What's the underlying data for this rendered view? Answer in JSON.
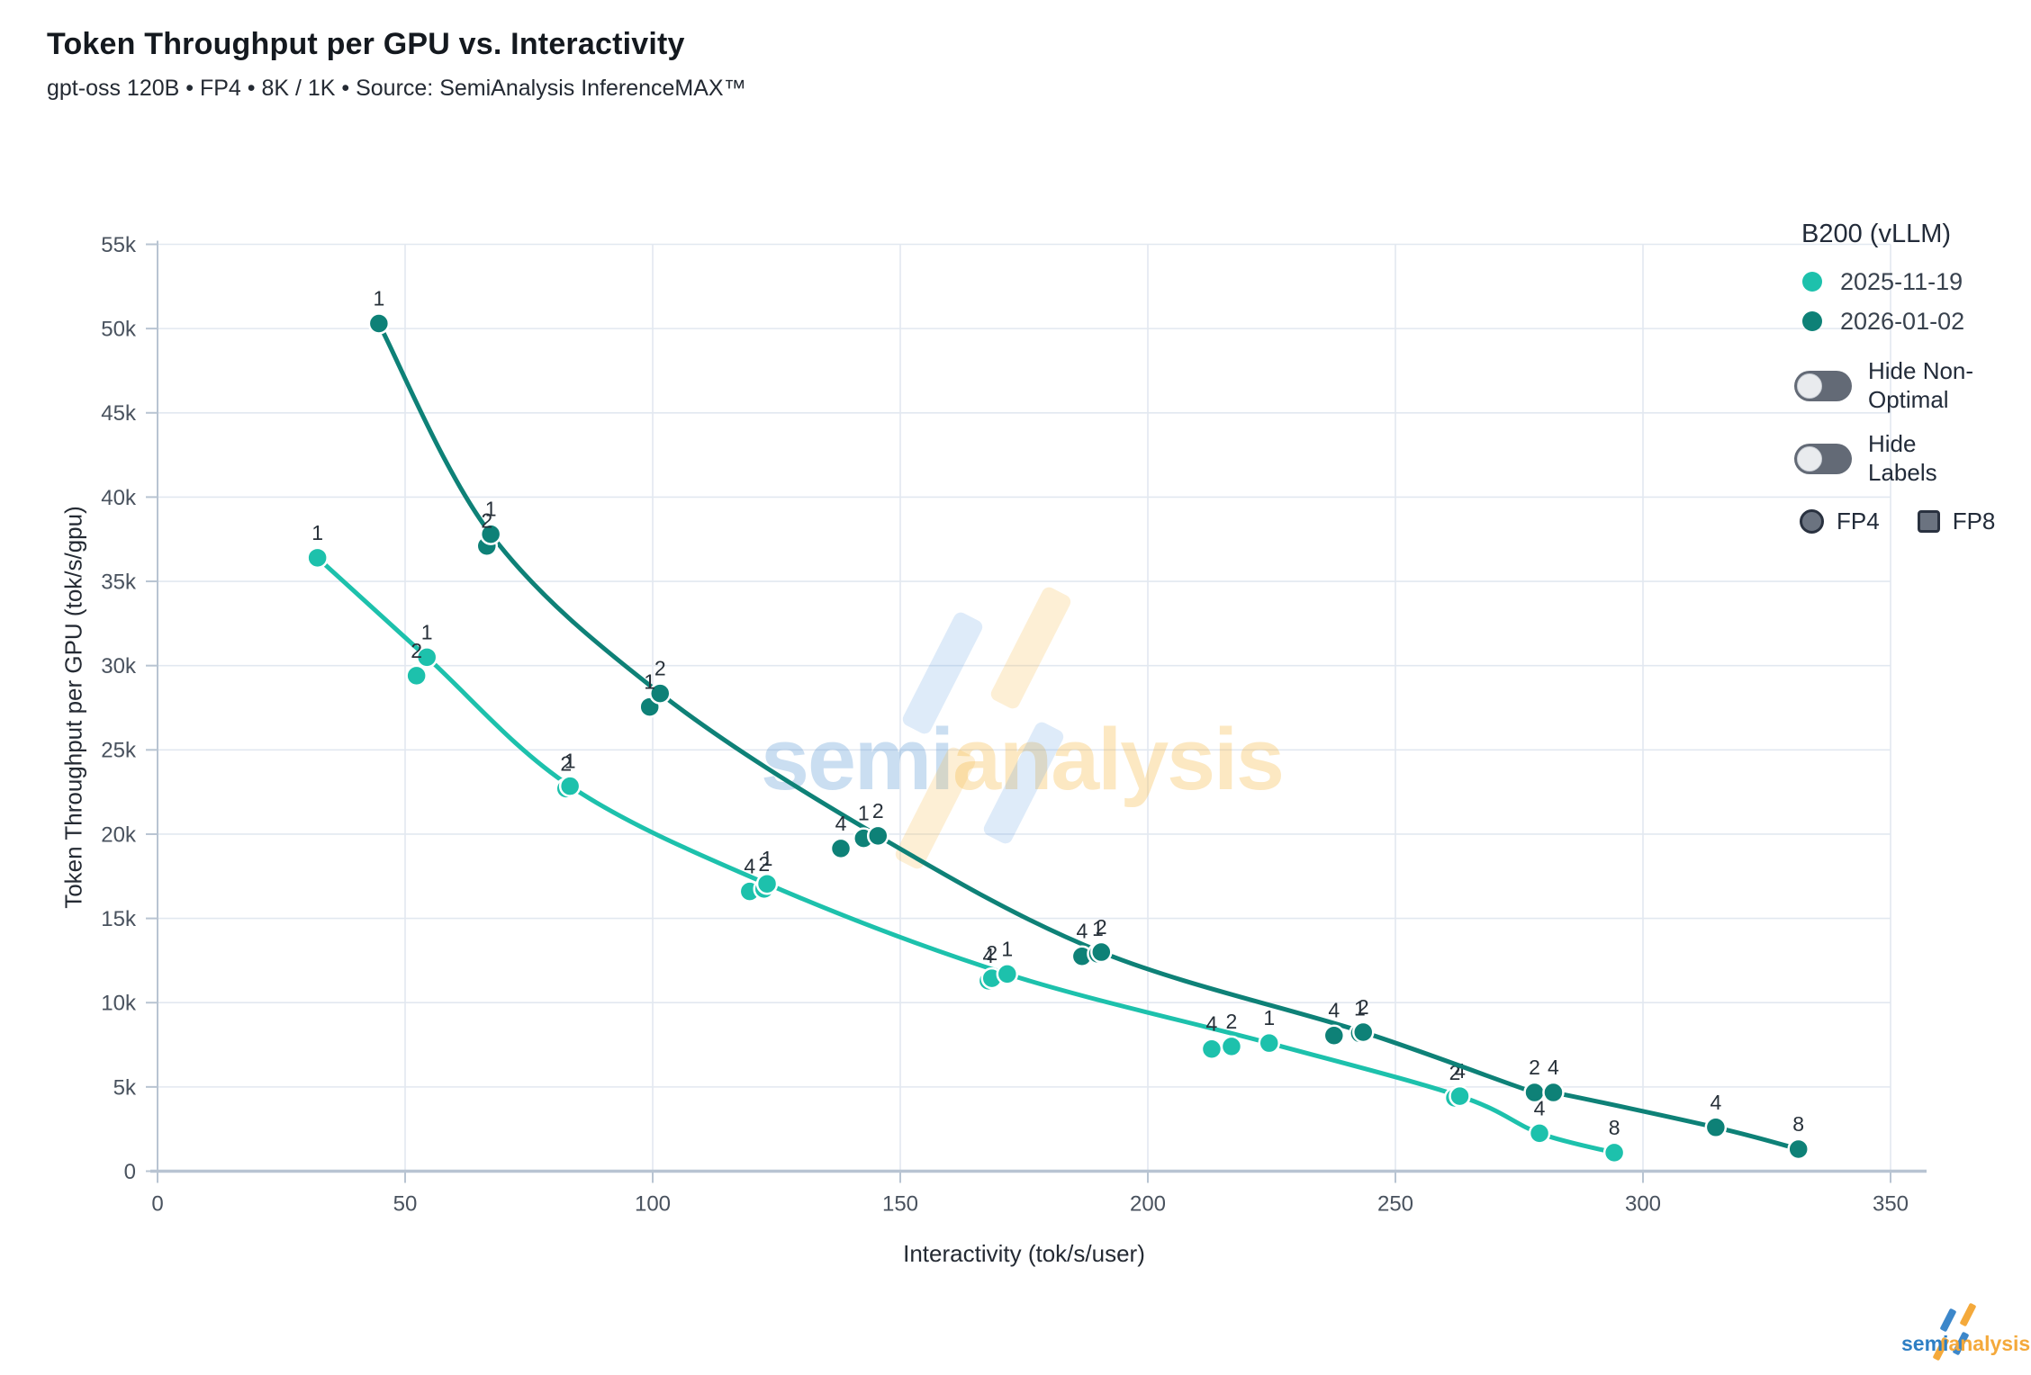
{
  "title": "Token Throughput per GPU vs. Interactivity",
  "subtitle": "gpt-oss 120B • FP4 • 8K / 1K • Source: SemiAnalysis InferenceMAX™",
  "watermark": {
    "part1": "semi",
    "part2": "analysis"
  },
  "logo": {
    "part1": "semi",
    "part2": "analysis"
  },
  "legend": {
    "title": "B200 (vLLM)",
    "entries": [
      {
        "label": "2025-11-19",
        "color": "#1dc1ac"
      },
      {
        "label": "2026-01-02",
        "color": "#0e8177"
      }
    ],
    "toggles": [
      {
        "label": "Hide Non-Optimal",
        "state": "off"
      },
      {
        "label": "Hide Labels",
        "state": "off"
      }
    ],
    "shapes": [
      {
        "shape": "circle",
        "label": "FP4"
      },
      {
        "shape": "square",
        "label": "FP8"
      }
    ]
  },
  "chart_data": {
    "type": "line",
    "title": "Token Throughput per GPU vs. Interactivity",
    "xlabel": "Interactivity (tok/s/user)",
    "ylabel": "Token Throughput per GPU (tok/s/gpu)",
    "xlim": [
      0,
      350
    ],
    "ylim": [
      0,
      55000
    ],
    "grid": true,
    "legend_position": "top-right",
    "x_ticks": [
      0,
      50,
      100,
      150,
      200,
      250,
      300,
      350
    ],
    "y_ticks": [
      {
        "value": 0,
        "label": "0"
      },
      {
        "value": 5000,
        "label": "5k"
      },
      {
        "value": 10000,
        "label": "10k"
      },
      {
        "value": 15000,
        "label": "15k"
      },
      {
        "value": 20000,
        "label": "20k"
      },
      {
        "value": 25000,
        "label": "25k"
      },
      {
        "value": 30000,
        "label": "30k"
      },
      {
        "value": 35000,
        "label": "35k"
      },
      {
        "value": 40000,
        "label": "40k"
      },
      {
        "value": 45000,
        "label": "45k"
      },
      {
        "value": 50000,
        "label": "50k"
      },
      {
        "value": 55000,
        "label": "55k"
      }
    ],
    "series": [
      {
        "name": "2025-11-19",
        "color": "#1dc1ac",
        "points": [
          {
            "x": 32.3,
            "y": 36400,
            "label": "1",
            "on_curve": true
          },
          {
            "x": 52.3,
            "y": 29400,
            "label": "2",
            "on_curve": false
          },
          {
            "x": 54.4,
            "y": 30500,
            "label": "1",
            "on_curve": true
          },
          {
            "x": 82.5,
            "y": 22700,
            "label": "2",
            "on_curve": false
          },
          {
            "x": 83.3,
            "y": 22850,
            "label": "1",
            "on_curve": true
          },
          {
            "x": 119.6,
            "y": 16600,
            "label": "4",
            "on_curve": false
          },
          {
            "x": 122.5,
            "y": 16750,
            "label": "2",
            "on_curve": false
          },
          {
            "x": 123.1,
            "y": 17050,
            "label": "1",
            "on_curve": true
          },
          {
            "x": 167.8,
            "y": 11300,
            "label": "4",
            "on_curve": false
          },
          {
            "x": 168.5,
            "y": 11450,
            "label": "2",
            "on_curve": false
          },
          {
            "x": 171.6,
            "y": 11700,
            "label": "1",
            "on_curve": true
          },
          {
            "x": 212.9,
            "y": 7250,
            "label": "4",
            "on_curve": false
          },
          {
            "x": 216.9,
            "y": 7400,
            "label": "2",
            "on_curve": false
          },
          {
            "x": 224.5,
            "y": 7600,
            "label": "1",
            "on_curve": true
          },
          {
            "x": 262.0,
            "y": 4350,
            "label": "2",
            "on_curve": false
          },
          {
            "x": 263.0,
            "y": 4450,
            "label": "4",
            "on_curve": true
          },
          {
            "x": 279.1,
            "y": 2250,
            "label": "4",
            "on_curve": true
          },
          {
            "x": 294.2,
            "y": 1100,
            "label": "8",
            "on_curve": true
          }
        ]
      },
      {
        "name": "2026-01-02",
        "color": "#0e8177",
        "points": [
          {
            "x": 44.7,
            "y": 50300,
            "label": "1",
            "on_curve": true
          },
          {
            "x": 66.5,
            "y": 37100,
            "label": "2",
            "on_curve": false
          },
          {
            "x": 67.3,
            "y": 37800,
            "label": "1",
            "on_curve": true
          },
          {
            "x": 99.4,
            "y": 27550,
            "label": "1",
            "on_curve": false
          },
          {
            "x": 101.5,
            "y": 28350,
            "label": "2",
            "on_curve": true
          },
          {
            "x": 138.0,
            "y": 19150,
            "label": "4",
            "on_curve": false
          },
          {
            "x": 142.6,
            "y": 19750,
            "label": "1",
            "on_curve": false
          },
          {
            "x": 145.5,
            "y": 19900,
            "label": "2",
            "on_curve": true
          },
          {
            "x": 186.7,
            "y": 12750,
            "label": "4",
            "on_curve": false
          },
          {
            "x": 189.9,
            "y": 12900,
            "label": "1",
            "on_curve": false
          },
          {
            "x": 190.6,
            "y": 13000,
            "label": "2",
            "on_curve": true
          },
          {
            "x": 237.6,
            "y": 8050,
            "label": "4",
            "on_curve": false
          },
          {
            "x": 242.8,
            "y": 8180,
            "label": "1",
            "on_curve": false
          },
          {
            "x": 243.5,
            "y": 8250,
            "label": "2",
            "on_curve": true
          },
          {
            "x": 278.1,
            "y": 4670,
            "label": "2",
            "on_curve": true
          },
          {
            "x": 281.9,
            "y": 4670,
            "label": "4",
            "on_curve": true
          },
          {
            "x": 314.7,
            "y": 2600,
            "label": "4",
            "on_curve": true
          },
          {
            "x": 331.4,
            "y": 1310,
            "label": "8",
            "on_curve": true
          }
        ]
      }
    ]
  }
}
